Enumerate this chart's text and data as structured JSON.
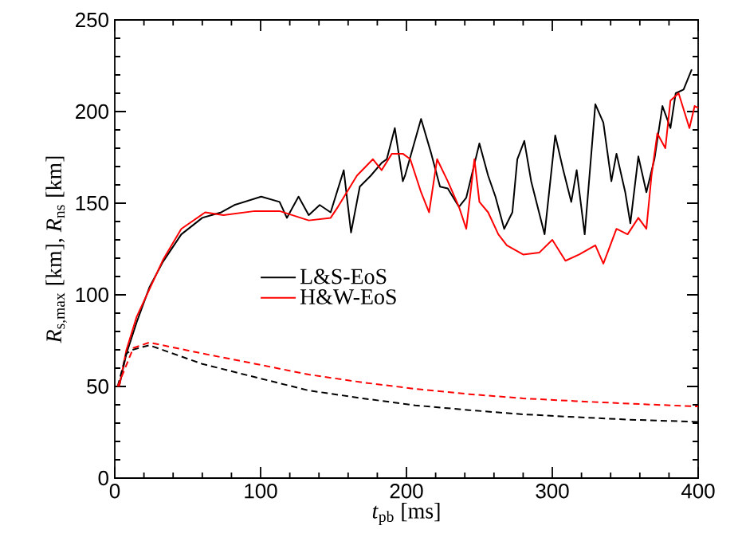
{
  "chart_data": {
    "type": "line",
    "xlabel": "*t*$_{pb}$ [ms]",
    "ylabel": "*R*$_{s,max}$ [km], *R*$_{ns}$ [km]",
    "xlim": [
      0,
      400
    ],
    "ylim": [
      0,
      250
    ],
    "xticks": [
      0,
      100,
      200,
      300,
      400
    ],
    "yticks": [
      0,
      50,
      100,
      150,
      200,
      250
    ],
    "legend": "center",
    "grid": false,
    "series": [
      {
        "name": "L&S-EoS",
        "color": "#000000",
        "line_style": "solid",
        "x": [
          3,
          8,
          15,
          23.7,
          33,
          45.6,
          60,
          73,
          82,
          100.4,
          113,
          118,
          126,
          133,
          140.5,
          148,
          157,
          162,
          168,
          175.5,
          183,
          186.5,
          192,
          197.5,
          199,
          210,
          217,
          223,
          228.3,
          236,
          241,
          250,
          256,
          261,
          267,
          272.6,
          276,
          280.8,
          285.5,
          294.7,
          302,
          307.5,
          313,
          316.7,
          322.2,
          329.5,
          335,
          340.5,
          344,
          350,
          353.5,
          359,
          364.5,
          370,
          375.5,
          381,
          384.6,
          390,
          395.6
        ],
        "values": [
          50,
          68,
          85,
          104,
          118,
          133,
          142,
          145,
          149,
          153.6,
          150.7,
          142,
          153.6,
          143.5,
          149,
          145,
          168,
          134,
          159,
          165,
          172,
          174,
          191,
          162,
          165,
          196,
          177,
          159,
          158,
          148,
          153,
          182.6,
          165,
          153.6,
          136,
          145,
          174,
          184,
          162,
          133,
          187,
          168,
          150.7,
          168,
          133,
          204,
          194,
          162,
          177,
          156,
          139,
          175.5,
          156,
          174,
          203,
          191,
          210,
          212,
          223
        ]
      },
      {
        "name": "H&W-EoS",
        "color": "#ff0000",
        "line_style": "solid",
        "x": [
          3,
          8,
          15,
          22,
          33,
          45.6,
          62,
          74.5,
          96,
          113,
          133,
          148,
          153,
          166,
          177,
          183,
          190,
          197.5,
          202.6,
          210,
          215.5,
          221,
          228.3,
          236,
          241,
          246.6,
          250,
          256,
          263,
          268.8,
          280,
          291,
          300,
          309,
          318.4,
          329.5,
          335,
          344,
          351.6,
          359,
          364.5,
          368,
          372,
          377.5,
          381,
          386.6,
          394,
          397.6,
          400
        ],
        "values": [
          50,
          70,
          88,
          100,
          119,
          136,
          145,
          143.5,
          145.7,
          145.7,
          140.6,
          142,
          148,
          165,
          174,
          168,
          177,
          177,
          174,
          156,
          145,
          174,
          162,
          148,
          136,
          174,
          150.7,
          145,
          133,
          127,
          122,
          123,
          130,
          118.6,
          122,
          127,
          117,
          136,
          133,
          142,
          136,
          165,
          188,
          180,
          206,
          210,
          191,
          203,
          202
        ]
      },
      {
        "color": "#000000",
        "line_style": "dashed",
        "x": [
          2,
          8,
          12,
          23.7,
          60,
          96.6,
          133,
          170,
          206,
          243,
          280,
          316,
          353,
          400
        ],
        "values": [
          50,
          68,
          70,
          72.5,
          62.3,
          55,
          47.8,
          43.5,
          39.7,
          37.1,
          34.8,
          33.3,
          31.9,
          30.7
        ]
      },
      {
        "color": "#ff0000",
        "line_style": "dashed",
        "x": [
          2,
          12.7,
          23.7,
          60,
          96.6,
          133,
          170,
          206,
          243,
          280,
          316,
          353,
          400
        ],
        "values": [
          50,
          71,
          74,
          68,
          62.3,
          56.5,
          52.2,
          48.7,
          45.8,
          43.5,
          42,
          40.6,
          39.1
        ]
      }
    ]
  }
}
